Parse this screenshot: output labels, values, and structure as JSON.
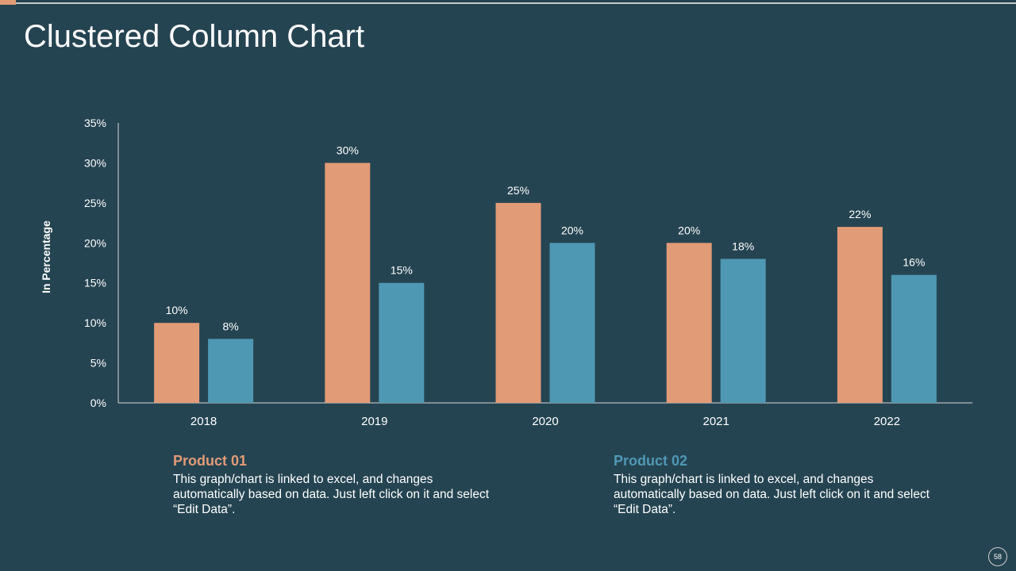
{
  "slide": {
    "title": "Clustered Column Chart",
    "page_number": "58"
  },
  "colors": {
    "background": "#254452",
    "product_01": "#e19b77",
    "product_02": "#4f98b3",
    "axis": "#d8d8d8"
  },
  "chart_data": {
    "type": "bar",
    "ylabel": "In Percentage",
    "xlabel": "",
    "ylim": [
      0,
      35
    ],
    "yticks": [
      "0%",
      "5%",
      "10%",
      "15%",
      "20%",
      "25%",
      "30%",
      "35%"
    ],
    "ytick_values": [
      0,
      5,
      10,
      15,
      20,
      25,
      30,
      35
    ],
    "categories": [
      "2018",
      "2019",
      "2020",
      "2021",
      "2022"
    ],
    "series": [
      {
        "name": "Product 01",
        "values": [
          10,
          30,
          25,
          20,
          22
        ],
        "labels": [
          "10%",
          "30%",
          "25%",
          "20%",
          "22%"
        ]
      },
      {
        "name": "Product 02",
        "values": [
          8,
          15,
          20,
          18,
          16
        ],
        "labels": [
          "8%",
          "15%",
          "20%",
          "18%",
          "16%"
        ]
      }
    ],
    "grid": false,
    "legend": "none"
  },
  "descriptions": [
    {
      "heading": "Product 01",
      "text": "This graph/chart is linked to excel, and changes automatically based on data. Just left click on it and select “Edit Data”."
    },
    {
      "heading": "Product 02",
      "text": "This graph/chart is linked to excel, and changes automatically based on data. Just left click on it and select “Edit Data”."
    }
  ]
}
